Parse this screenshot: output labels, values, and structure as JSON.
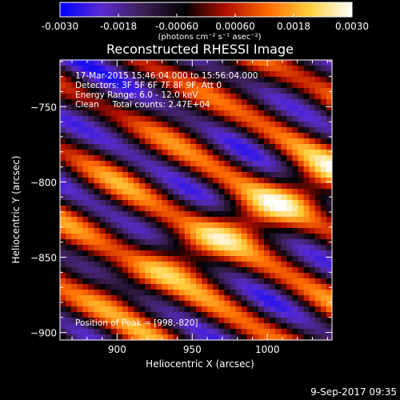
{
  "chart_data": {
    "type": "heatmap",
    "title": "Reconstructed RHESSI Image",
    "xlabel": "Heliocentric X (arcsec)",
    "ylabel": "Heliocentric Y (arcsec)",
    "xlim": [
      862,
      1043
    ],
    "ylim": [
      -905,
      -719
    ],
    "x_ticks": [
      900,
      950,
      1000
    ],
    "y_ticks": [
      -750,
      -800,
      -850,
      -900
    ],
    "colorbar": {
      "range": [
        -0.003,
        0.003
      ],
      "tick_values": [
        -0.003,
        -0.0018,
        -0.0006,
        0.0006,
        0.0018,
        0.003
      ],
      "tick_labels": [
        "-0.0030",
        "-0.0018",
        "-0.00060",
        "0.00060",
        "0.0018",
        "0.0030"
      ],
      "label": "(photons cm⁻² s⁻¹ asec⁻²)",
      "colors": [
        "#0000ff",
        "#5a2bd0",
        "#3b1f50",
        "#000000",
        "#b41000",
        "#ff6a00",
        "#ffd040",
        "#ffffff"
      ]
    },
    "peak": {
      "x": 998,
      "y": -820
    },
    "info_lines": [
      "17-Mar-2015 15:46:04.000 to 15:56:04.000",
      "Detectors: 3F 5F 6F 7F 8F 9F, Att 0",
      "Energy Range: 6.0 - 12.0 keV",
      "Clean     Total counts: 2.47E+04"
    ],
    "peak_label": "Position of Peak = [998,-820]",
    "footer_timestamp": "9-Sep-2017 09:35"
  }
}
